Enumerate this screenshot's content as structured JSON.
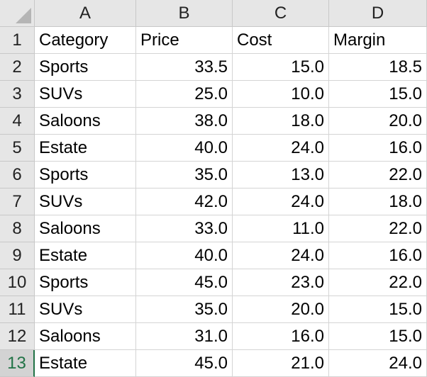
{
  "sheet": {
    "columns": [
      "A",
      "B",
      "C",
      "D"
    ],
    "rows": [
      "1",
      "2",
      "3",
      "4",
      "5",
      "6",
      "7",
      "8",
      "9",
      "10",
      "11",
      "12",
      "13"
    ],
    "active_row": "13",
    "accent_color": "#217346",
    "cells": [
      [
        "Category",
        "Price",
        "Cost",
        "Margin"
      ],
      [
        "Sports",
        "33.5",
        "15.0",
        "18.5"
      ],
      [
        "SUVs",
        "25.0",
        "10.0",
        "15.0"
      ],
      [
        "Saloons",
        "38.0",
        "18.0",
        "20.0"
      ],
      [
        "Estate",
        "40.0",
        "24.0",
        "16.0"
      ],
      [
        "Sports",
        "35.0",
        "13.0",
        "22.0"
      ],
      [
        "SUVs",
        "42.0",
        "24.0",
        "18.0"
      ],
      [
        "Saloons",
        "33.0",
        "11.0",
        "22.0"
      ],
      [
        "Estate",
        "40.0",
        "24.0",
        "16.0"
      ],
      [
        "Sports",
        "45.0",
        "23.0",
        "22.0"
      ],
      [
        "SUVs",
        "35.0",
        "20.0",
        "15.0"
      ],
      [
        "Saloons",
        "31.0",
        "16.0",
        "15.0"
      ],
      [
        "Estate",
        "45.0",
        "21.0",
        "24.0"
      ]
    ]
  }
}
